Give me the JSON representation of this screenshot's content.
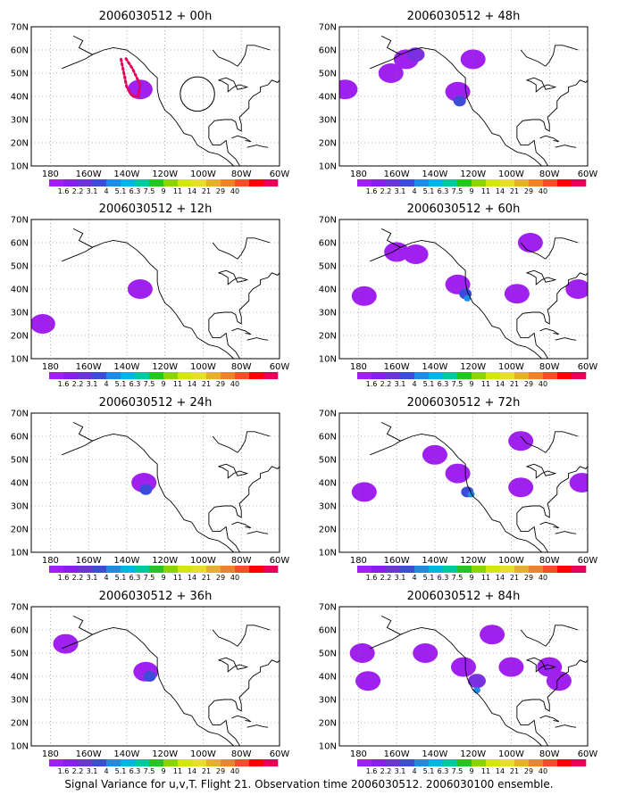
{
  "caption": "Signal Variance for u,v,T. Flight 21. Observation time 2006030512. 2006030100 ensemble.",
  "axes": {
    "lon_ticks": [
      "180",
      "160W",
      "140W",
      "120W",
      "100W",
      "80W",
      "60W"
    ],
    "lat_ticks": [
      "10N",
      "20N",
      "30N",
      "40N",
      "50N",
      "60N",
      "70N"
    ],
    "lon_range": [
      -190,
      -60
    ],
    "lat_range": [
      10,
      70
    ],
    "grid": "dotted"
  },
  "colorbar": {
    "labels": [
      "1.6",
      "2.2",
      "3.1",
      "4",
      "5.1",
      "6.3",
      "7.5",
      "9",
      "11",
      "14",
      "21",
      "29",
      "40"
    ],
    "colors": [
      "#a020f0",
      "#8a1ee6",
      "#6a36d8",
      "#3c4cd8",
      "#1e8be6",
      "#00b4e6",
      "#00c8a0",
      "#20c820",
      "#8cd40a",
      "#d2e614",
      "#e6dc32",
      "#e6af2d",
      "#f08228",
      "#f05028",
      "#ff0000",
      "#e6005a"
    ]
  },
  "fill_colors": [
    "#a020f0",
    "#7a30e0",
    "#3c4cd8",
    "#1e8be6"
  ],
  "panels": [
    {
      "title": "2006030512 + 00h",
      "blobs": [
        {
          "lon": -133,
          "lat": 43,
          "level": 0
        }
      ],
      "flight_track": [
        [
          -143,
          56
        ],
        [
          -140,
          44
        ],
        [
          -137,
          40
        ],
        [
          -134,
          40
        ],
        [
          -133,
          45
        ],
        [
          -137,
          52
        ],
        [
          -141,
          57
        ]
      ],
      "circle": {
        "lon": -103,
        "lat": 41,
        "r": 9
      }
    },
    {
      "title": "2006030512 + 48h",
      "blobs": [
        {
          "lon": -155,
          "lat": 56,
          "level": 0
        },
        {
          "lon": -163,
          "lat": 50,
          "level": 0
        },
        {
          "lon": -150,
          "lat": 58,
          "level": 1
        },
        {
          "lon": -128,
          "lat": 42,
          "level": 0
        },
        {
          "lon": -127,
          "lat": 38,
          "level": 2
        },
        {
          "lon": -120,
          "lat": 56,
          "level": 0
        },
        {
          "lon": -187,
          "lat": 43,
          "level": 0
        }
      ]
    },
    {
      "title": "2006030512 + 12h",
      "blobs": [
        {
          "lon": -133,
          "lat": 40,
          "level": 0
        },
        {
          "lon": -184,
          "lat": 25,
          "level": 0
        }
      ]
    },
    {
      "title": "2006030512 + 60h",
      "blobs": [
        {
          "lon": -150,
          "lat": 55,
          "level": 0
        },
        {
          "lon": -160,
          "lat": 56,
          "level": 0
        },
        {
          "lon": -128,
          "lat": 42,
          "level": 0
        },
        {
          "lon": -124,
          "lat": 38,
          "level": 2
        },
        {
          "lon": -123,
          "lat": 36,
          "level": 3
        },
        {
          "lon": -177,
          "lat": 37,
          "level": 0
        },
        {
          "lon": -90,
          "lat": 60,
          "level": 0
        },
        {
          "lon": -97,
          "lat": 38,
          "level": 0
        },
        {
          "lon": -65,
          "lat": 40,
          "level": 0
        }
      ]
    },
    {
      "title": "2006030512 + 24h",
      "blobs": [
        {
          "lon": -131,
          "lat": 40,
          "level": 0
        },
        {
          "lon": -130,
          "lat": 37,
          "level": 2
        }
      ]
    },
    {
      "title": "2006030512 + 72h",
      "blobs": [
        {
          "lon": -140,
          "lat": 52,
          "level": 0
        },
        {
          "lon": -128,
          "lat": 44,
          "level": 0
        },
        {
          "lon": -123,
          "lat": 36,
          "level": 2
        },
        {
          "lon": -121,
          "lat": 35,
          "level": 3
        },
        {
          "lon": -177,
          "lat": 36,
          "level": 0
        },
        {
          "lon": -95,
          "lat": 58,
          "level": 0
        },
        {
          "lon": -95,
          "lat": 38,
          "level": 0
        },
        {
          "lon": -63,
          "lat": 40,
          "level": 0
        }
      ]
    },
    {
      "title": "2006030512 + 36h",
      "blobs": [
        {
          "lon": -172,
          "lat": 54,
          "level": 0
        },
        {
          "lon": -130,
          "lat": 42,
          "level": 0
        },
        {
          "lon": -128,
          "lat": 40,
          "level": 2
        }
      ]
    },
    {
      "title": "2006030512 + 84h",
      "blobs": [
        {
          "lon": -145,
          "lat": 50,
          "level": 0
        },
        {
          "lon": -125,
          "lat": 44,
          "level": 0
        },
        {
          "lon": -118,
          "lat": 38,
          "level": 1
        },
        {
          "lon": -118,
          "lat": 34,
          "level": 3
        },
        {
          "lon": -100,
          "lat": 44,
          "level": 0
        },
        {
          "lon": -80,
          "lat": 44,
          "level": 0
        },
        {
          "lon": -75,
          "lat": 38,
          "level": 0
        },
        {
          "lon": -178,
          "lat": 50,
          "level": 0
        },
        {
          "lon": -175,
          "lat": 38,
          "level": 0
        },
        {
          "lon": -110,
          "lat": 58,
          "level": 0
        }
      ]
    }
  ]
}
